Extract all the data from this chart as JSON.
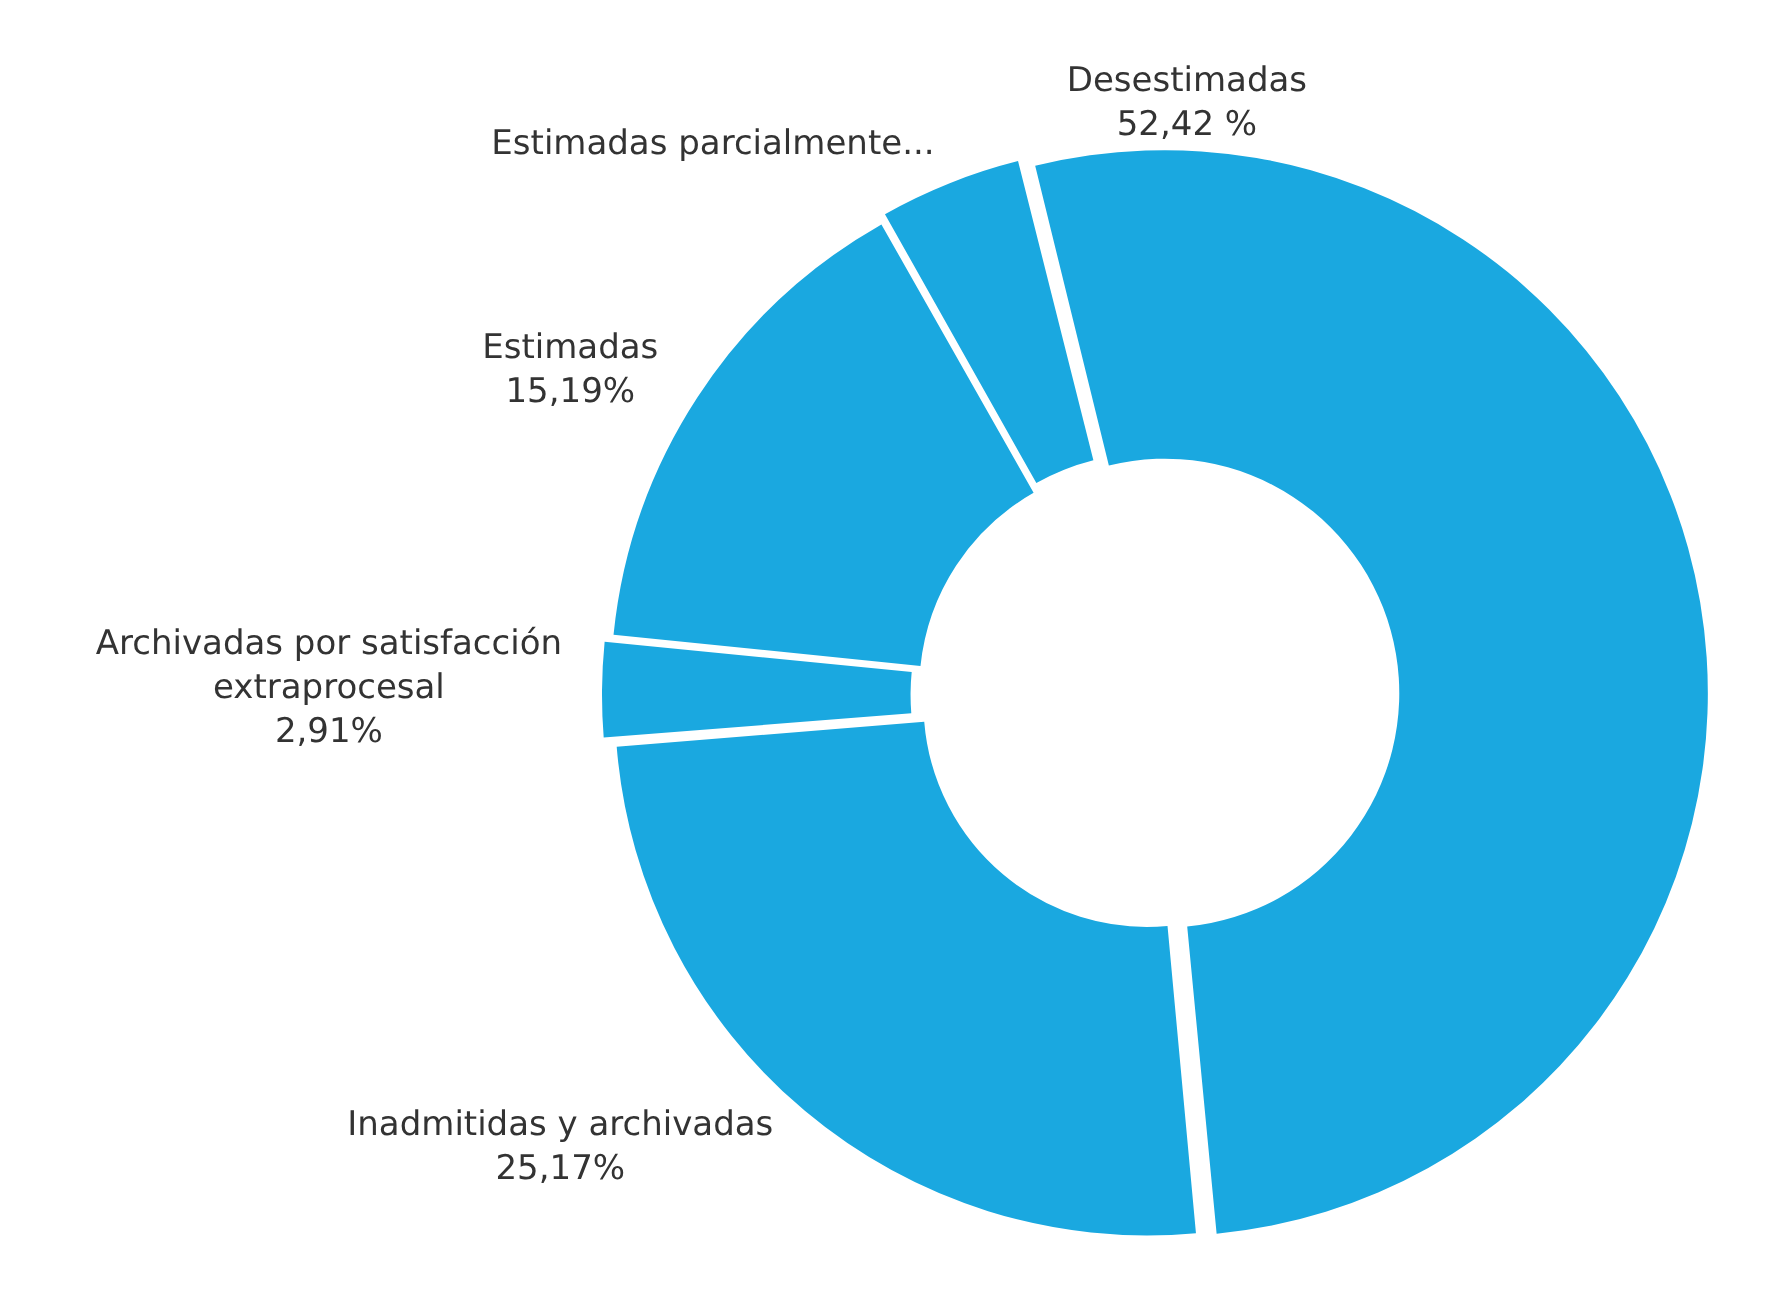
{
  "chart_data": {
    "type": "donut",
    "categories": [
      "Desestimadas",
      "Inadmitidas y archivadas",
      "Archivadas por satisfacción extraprocesal",
      "Estimadas",
      "Estimadas parcialmente..."
    ],
    "values": [
      52.42,
      25.17,
      2.91,
      15.19,
      4.31
    ],
    "value_labels": [
      "52,42 %",
      "25,17%",
      "2,91%",
      "15,19%",
      null
    ],
    "colors": [
      "#1aa8e0",
      "#1aa8e0",
      "#1aa8e0",
      "#1aa8e0",
      "#1aa8e0"
    ],
    "legend": false
  }
}
